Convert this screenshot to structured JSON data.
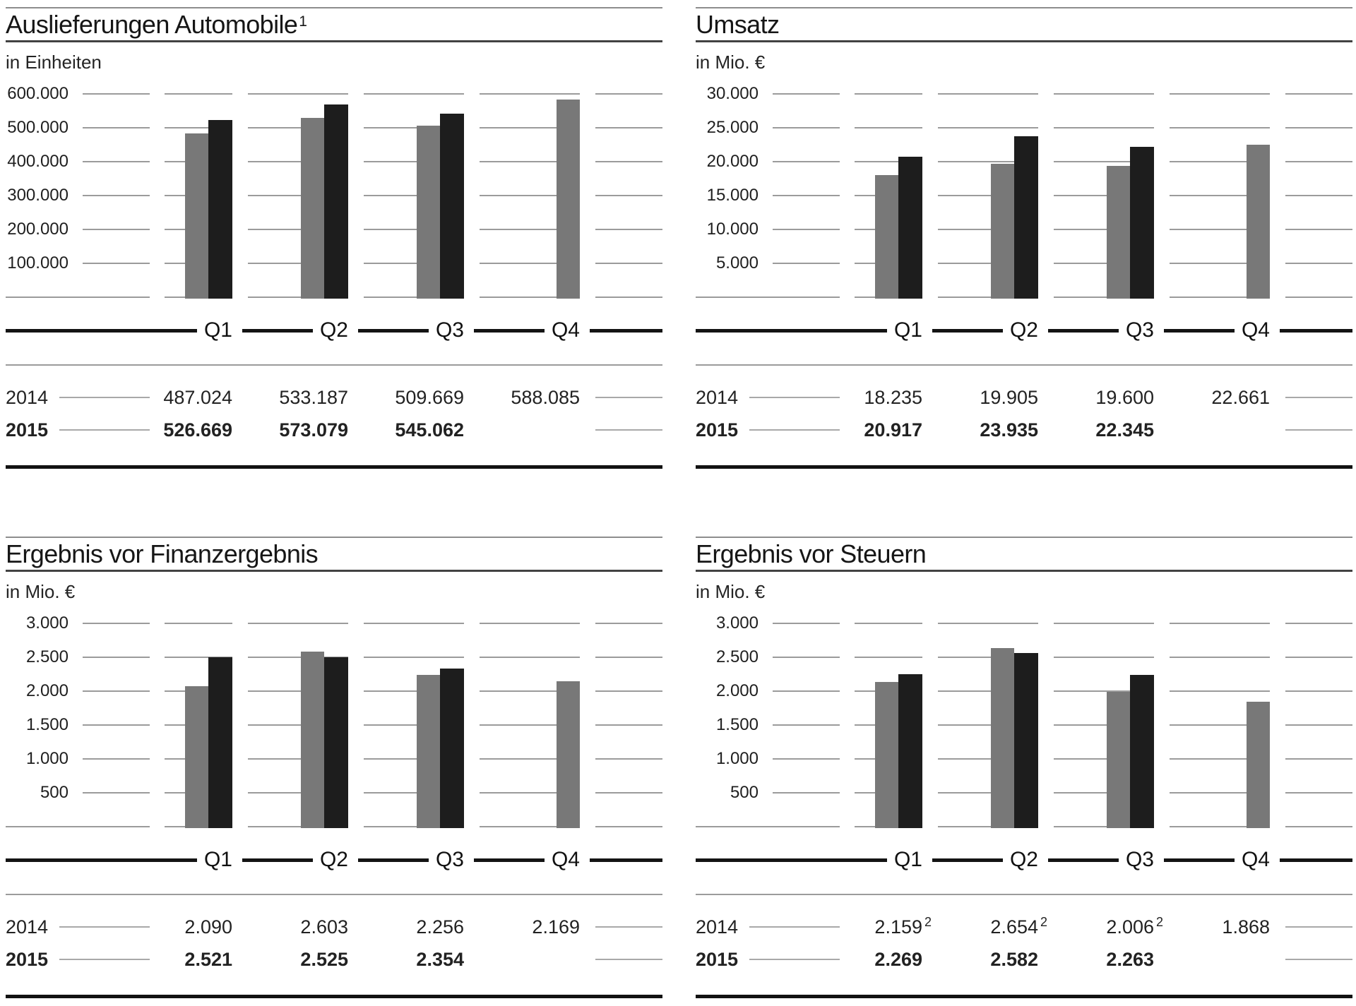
{
  "page": {
    "background": "#ffffff",
    "description": "Quarterly report page with four bar chart panels comparing 2014 and 2015 by quarter"
  },
  "colors": {
    "bar_2014": "#787878",
    "bar_2015": "#1d1d1d",
    "gridline": "#9b9b9b",
    "axis_line": "#141414",
    "text": "#1c1c1c",
    "table_connector_line": "#a9a9a9"
  },
  "chart_data": [
    {
      "type": "bar",
      "title": "Auslieferungen Automobile",
      "title_superscript": "1",
      "unit_label": "in Einheiten",
      "categories": [
        "Q1",
        "Q2",
        "Q3",
        "Q4"
      ],
      "ytick_labels": [
        "600.000",
        "500.000",
        "400.000",
        "300.000",
        "200.000",
        "100.000"
      ],
      "ylim": [
        0,
        600000
      ],
      "ytick_step": 100000,
      "grid": "segmented horizontal gridlines",
      "legend_position": "none",
      "bar_colors": {
        "2014": "#787878",
        "2015": "#1d1d1d"
      },
      "series": [
        {
          "name": "2014",
          "values": [
            487024,
            533187,
            509669,
            588085
          ],
          "display": [
            "487.024",
            "533.187",
            "509.669",
            "588.085"
          ],
          "superscripts": [
            "",
            "",
            "",
            ""
          ]
        },
        {
          "name": "2015",
          "values": [
            526669,
            573079,
            545062,
            null
          ],
          "display": [
            "526.669",
            "573.079",
            "545.062",
            ""
          ],
          "superscripts": [
            "",
            "",
            "",
            ""
          ]
        }
      ]
    },
    {
      "type": "bar",
      "title": "Umsatz",
      "title_superscript": "",
      "unit_label": "in Mio. €",
      "categories": [
        "Q1",
        "Q2",
        "Q3",
        "Q4"
      ],
      "ytick_labels": [
        "30.000",
        "25.000",
        "20.000",
        "15.000",
        "10.000",
        "5.000"
      ],
      "ylim": [
        0,
        30000
      ],
      "ytick_step": 5000,
      "grid": "segmented horizontal gridlines",
      "legend_position": "none",
      "bar_colors": {
        "2014": "#787878",
        "2015": "#1d1d1d"
      },
      "series": [
        {
          "name": "2014",
          "values": [
            18235,
            19905,
            19600,
            22661
          ],
          "display": [
            "18.235",
            "19.905",
            "19.600",
            "22.661"
          ],
          "superscripts": [
            "",
            "",
            "",
            ""
          ]
        },
        {
          "name": "2015",
          "values": [
            20917,
            23935,
            22345,
            null
          ],
          "display": [
            "20.917",
            "23.935",
            "22.345",
            ""
          ],
          "superscripts": [
            "",
            "",
            "",
            ""
          ]
        }
      ]
    },
    {
      "type": "bar",
      "title": "Ergebnis vor Finanzergebnis",
      "title_superscript": "",
      "unit_label": "in Mio. €",
      "categories": [
        "Q1",
        "Q2",
        "Q3",
        "Q4"
      ],
      "ytick_labels": [
        "3.000",
        "2.500",
        "2.000",
        "1.500",
        "1.000",
        "500"
      ],
      "ylim": [
        0,
        3000
      ],
      "ytick_step": 500,
      "grid": "segmented horizontal gridlines",
      "legend_position": "none",
      "bar_colors": {
        "2014": "#787878",
        "2015": "#1d1d1d"
      },
      "series": [
        {
          "name": "2014",
          "values": [
            2090,
            2603,
            2256,
            2169
          ],
          "display": [
            "2.090",
            "2.603",
            "2.256",
            "2.169"
          ],
          "superscripts": [
            "",
            "",
            "",
            ""
          ]
        },
        {
          "name": "2015",
          "values": [
            2521,
            2525,
            2354,
            null
          ],
          "display": [
            "2.521",
            "2.525",
            "2.354",
            ""
          ],
          "superscripts": [
            "",
            "",
            "",
            ""
          ]
        }
      ]
    },
    {
      "type": "bar",
      "title": "Ergebnis vor Steuern",
      "title_superscript": "",
      "unit_label": "in Mio. €",
      "categories": [
        "Q1",
        "Q2",
        "Q3",
        "Q4"
      ],
      "ytick_labels": [
        "3.000",
        "2.500",
        "2.000",
        "1.500",
        "1.000",
        "500"
      ],
      "ylim": [
        0,
        3000
      ],
      "ytick_step": 500,
      "grid": "segmented horizontal gridlines",
      "legend_position": "none",
      "bar_colors": {
        "2014": "#787878",
        "2015": "#1d1d1d"
      },
      "series": [
        {
          "name": "2014",
          "values": [
            2159,
            2654,
            2006,
            1868
          ],
          "display": [
            "2.159",
            "2.654",
            "2.006",
            "1.868"
          ],
          "superscripts": [
            "2",
            "2",
            "2",
            ""
          ]
        },
        {
          "name": "2015",
          "values": [
            2269,
            2582,
            2263,
            null
          ],
          "display": [
            "2.269",
            "2.582",
            "2.263",
            ""
          ],
          "superscripts": [
            "",
            "",
            "",
            ""
          ]
        }
      ]
    }
  ]
}
